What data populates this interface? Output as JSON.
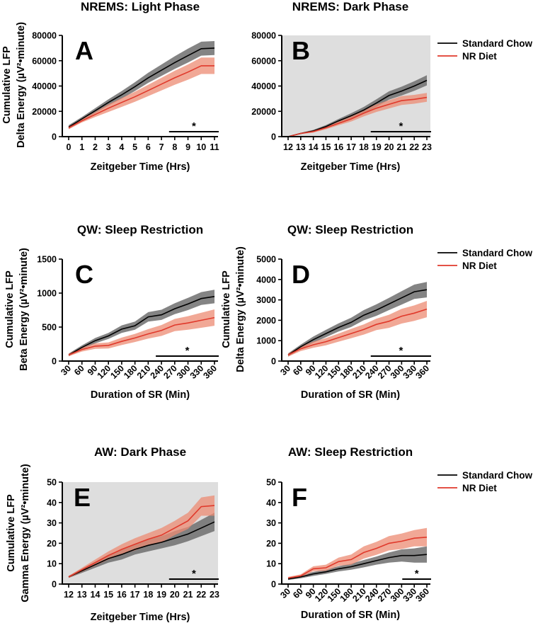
{
  "colors": {
    "standard_chow": "#000000",
    "standard_chow_band": "#6e6e6e",
    "nr_diet": "#e0392b",
    "nr_diet_band": "#ec8b73",
    "dark_phase_bg": "#dedede"
  },
  "legend": {
    "standard_chow": "Standard Chow",
    "nr_diet": "NR Diet"
  },
  "chart_data": [
    {
      "panel": "A",
      "type": "line",
      "title": "NREMS: Light Phase",
      "xlabel": "Zeitgeber Time (Hrs)",
      "ylabel_lines": [
        "Cumulative LFP",
        "Delta Energy (µV²•minute)"
      ],
      "categories": [
        "0",
        "1",
        "2",
        "3",
        "4",
        "5",
        "6",
        "7",
        "8",
        "9",
        "10",
        "11"
      ],
      "ylim": [
        0,
        80000
      ],
      "yticks": [
        "0",
        "20000",
        "40000",
        "60000",
        "80000"
      ],
      "shaded": false,
      "significance": "*",
      "sig_range": [
        "8",
        "11"
      ],
      "series": [
        {
          "name": "Standard Chow",
          "values": [
            7500,
            14000,
            20500,
            27000,
            33000,
            39500,
            46500,
            52500,
            58500,
            64000,
            69500,
            70000
          ],
          "band": [
            1500,
            1500,
            2000,
            2500,
            3000,
            3500,
            4000,
            4500,
            5000,
            5500,
            5500,
            5500
          ]
        },
        {
          "name": "NR Diet",
          "values": [
            7000,
            12500,
            17500,
            22500,
            27000,
            31500,
            36500,
            41500,
            46500,
            51000,
            56000,
            56000
          ],
          "band": [
            1200,
            1300,
            2000,
            3000,
            3500,
            4000,
            4500,
            5000,
            5500,
            6000,
            6500,
            6500
          ]
        }
      ]
    },
    {
      "panel": "B",
      "type": "line",
      "title": "NREMS: Dark Phase",
      "xlabel": "Zeitgeber Time (Hrs)",
      "ylabel_lines": [],
      "categories": [
        "12",
        "13",
        "14",
        "15",
        "16",
        "17",
        "18",
        "19",
        "20",
        "21",
        "22",
        "23"
      ],
      "ylim": [
        0,
        80000
      ],
      "yticks": [
        "0",
        "20000",
        "40000",
        "60000",
        "80000"
      ],
      "shaded": true,
      "significance": "*",
      "sig_range": [
        "19",
        "23"
      ],
      "series": [
        {
          "name": "Standard Chow",
          "values": [
            0,
            2500,
            4500,
            8000,
            12500,
            16500,
            21000,
            26500,
            32500,
            36000,
            40000,
            44500
          ],
          "band": [
            300,
            500,
            800,
            1200,
            1500,
            2000,
            2500,
            3000,
            3300,
            3500,
            3800,
            4000
          ]
        },
        {
          "name": "NR Diet",
          "values": [
            0,
            2500,
            4000,
            7000,
            10500,
            14000,
            18500,
            22500,
            25500,
            28500,
            29500,
            31000
          ],
          "band": [
            300,
            500,
            800,
            1200,
            1500,
            2000,
            2500,
            3000,
            3300,
            3500,
            3500,
            3500
          ]
        }
      ]
    },
    {
      "panel": "C",
      "type": "line",
      "title": "QW: Sleep Restriction",
      "xlabel": "Duration of SR (Min)",
      "ylabel_lines": [
        "Cumulative LFP",
        "Beta Energy (µV²•minute)"
      ],
      "categories": [
        "30",
        "60",
        "90",
        "120",
        "150",
        "180",
        "210",
        "240",
        "270",
        "300",
        "330",
        "360"
      ],
      "ylim": [
        0,
        1500
      ],
      "yticks": [
        "0",
        "500",
        "1000",
        "1500"
      ],
      "shaded": false,
      "significance": "*",
      "sig_range": [
        "240",
        "360"
      ],
      "series": [
        {
          "name": "Standard Chow",
          "values": [
            90,
            200,
            300,
            370,
            470,
            520,
            650,
            680,
            770,
            840,
            920,
            950
          ],
          "band": [
            20,
            30,
            40,
            45,
            55,
            60,
            70,
            75,
            80,
            90,
            95,
            100
          ]
        },
        {
          "name": "NR Diet",
          "values": [
            90,
            170,
            220,
            230,
            290,
            340,
            400,
            450,
            530,
            560,
            600,
            640
          ],
          "band": [
            20,
            30,
            40,
            45,
            55,
            60,
            70,
            80,
            90,
            100,
            110,
            120
          ]
        }
      ]
    },
    {
      "panel": "D",
      "type": "line",
      "title": "QW: Sleep Restriction",
      "xlabel": "Duration of SR (Min)",
      "ylabel_lines": [
        "Cumulative LFP",
        "Delta Energy (µV²•minute)"
      ],
      "categories": [
        "30",
        "60",
        "90",
        "120",
        "150",
        "180",
        "210",
        "240",
        "270",
        "300",
        "330",
        "360"
      ],
      "ylim": [
        0,
        5000
      ],
      "yticks": [
        "0",
        "1000",
        "2000",
        "3000",
        "4000",
        "5000"
      ],
      "shaded": false,
      "significance": "*",
      "sig_range": [
        "240",
        "360"
      ],
      "series": [
        {
          "name": "Standard Chow",
          "values": [
            300,
            700,
            1050,
            1350,
            1650,
            1900,
            2250,
            2500,
            2800,
            3100,
            3400,
            3500
          ],
          "band": [
            80,
            110,
            150,
            180,
            200,
            230,
            250,
            280,
            300,
            330,
            350,
            380
          ]
        },
        {
          "name": "NR Diet",
          "values": [
            300,
            600,
            800,
            950,
            1150,
            1350,
            1550,
            1800,
            1950,
            2200,
            2350,
            2550
          ],
          "band": [
            80,
            110,
            150,
            180,
            200,
            230,
            250,
            280,
            320,
            360,
            380,
            400
          ]
        }
      ]
    },
    {
      "panel": "E",
      "type": "line",
      "title": "AW: Dark Phase",
      "xlabel": "Zeitgeber Time (Hrs)",
      "ylabel_lines": [
        "Cumulative LFP",
        "Gamma Energy (µV²•minute)"
      ],
      "categories": [
        "12",
        "13",
        "14",
        "15",
        "16",
        "17",
        "18",
        "19",
        "20",
        "21",
        "22",
        "23"
      ],
      "ylim": [
        0,
        50
      ],
      "yticks": [
        "0",
        "10",
        "20",
        "30",
        "40",
        "50"
      ],
      "shaded": true,
      "significance": "*",
      "sig_range": [
        "20",
        "23"
      ],
      "series": [
        {
          "name": "Standard Chow",
          "values": [
            3.5,
            6.5,
            9.5,
            12.5,
            14.5,
            17,
            19,
            20.5,
            22.5,
            24.5,
            27.5,
            30.5
          ],
          "band": [
            0.5,
            1,
            1.5,
            2,
            2.5,
            2.5,
            3,
            3,
            3.5,
            3.5,
            4,
            4.5
          ]
        },
        {
          "name": "NR Diet",
          "values": [
            3.5,
            7,
            10.5,
            14,
            17,
            19.5,
            22,
            24,
            27.5,
            31,
            38,
            38.5
          ],
          "band": [
            0.5,
            1,
            1.5,
            2,
            2.5,
            3,
            3,
            3.5,
            3.5,
            4,
            4.5,
            5
          ]
        }
      ]
    },
    {
      "panel": "F",
      "type": "line",
      "title": "AW: Sleep Restriction",
      "xlabel": "Duration of SR (Min)",
      "ylabel_lines": [],
      "categories": [
        "30",
        "60",
        "90",
        "120",
        "150",
        "180",
        "210",
        "240",
        "270",
        "300",
        "330",
        "360"
      ],
      "ylim": [
        0,
        50
      ],
      "yticks": [
        "0",
        "10",
        "20",
        "30",
        "40",
        "50"
      ],
      "shaded": false,
      "significance": "*",
      "sig_range": [
        "315",
        "360"
      ],
      "series": [
        {
          "name": "Standard Chow",
          "values": [
            2.5,
            3.5,
            5,
            6,
            7.5,
            8.5,
            10,
            11.5,
            13,
            14,
            14,
            14.5
          ],
          "band": [
            0.5,
            0.7,
            1,
            1,
            1.3,
            1.5,
            1.8,
            2,
            2.5,
            3,
            3.5,
            4
          ]
        },
        {
          "name": "NR Diet",
          "values": [
            3,
            4,
            7.5,
            8,
            11,
            12,
            15.5,
            17.5,
            20,
            21,
            22.5,
            23
          ],
          "band": [
            0.5,
            0.8,
            1.2,
            1.5,
            2,
            2.5,
            3,
            3.2,
            3.5,
            3.8,
            4,
            4.5
          ]
        }
      ]
    }
  ]
}
